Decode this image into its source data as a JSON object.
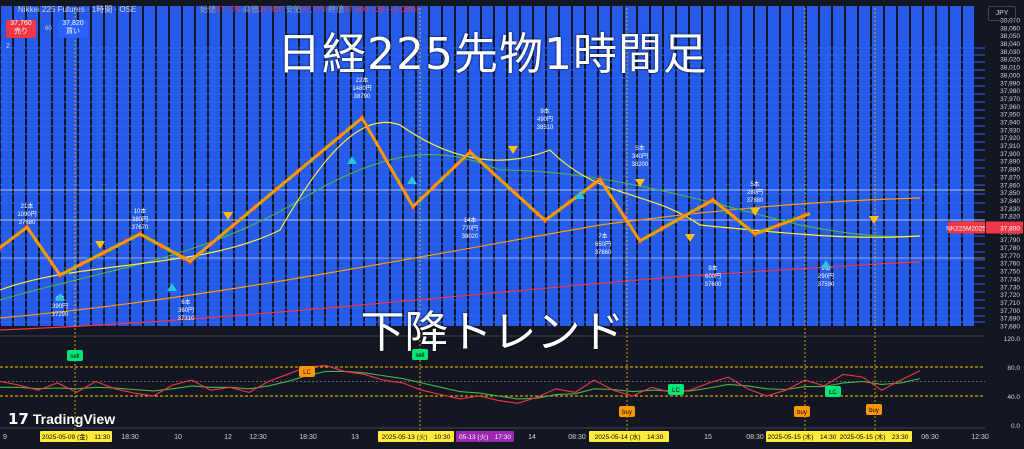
{
  "overlay": {
    "title": "日経225先物1時間足",
    "trend": "下降トレンド"
  },
  "header": {
    "symbol_title": "Nikkei 225 Futures · 1時間 · OSE",
    "ohlc_label_open": "始値",
    "ohlc_open": "37,770",
    "ohlc_label_high": "高値",
    "ohlc_high": "37,800",
    "ohlc_label_low": "安値",
    "ohlc_low": "37,770",
    "ohlc_label_close": "終値",
    "ohlc_close": "37,800 +30 (+0.08%)",
    "sell_price": "37,760",
    "sell_label": "売り",
    "quantity": "60",
    "buy_price": "37,820",
    "buy_label": "買い",
    "indicator_count": "2",
    "currency": "JPY"
  },
  "logo": {
    "text": "TradingView"
  },
  "colors": {
    "background": "#131722",
    "bar_blue": "#2962ff",
    "zigzag": "#ff9800",
    "ma_fast": "#ffeb3b",
    "ma_mid": "#4caf50",
    "ma_slow": "#ff9800",
    "ma_long": "#f23645",
    "rsi_fast": "#f23645",
    "rsi_slow": "#4caf50",
    "sell_badge": "#00e676",
    "buy_badge": "#ff9800",
    "lc_badge_orange": "#ff9800",
    "lc_badge_green": "#00e676",
    "price_tag": "#f23645",
    "date_highlight": "#ffeb3b",
    "date_highlight_purple": "#9c27b0"
  },
  "chart_data": {
    "type": "candlestick",
    "title": "",
    "symbol_tag": "NK225M2025",
    "current_price": "37,800",
    "price_axis": {
      "ylim": [
        37680,
        38070
      ],
      "ticks": [
        "38,070",
        "38,060",
        "38,050",
        "38,040",
        "38,030",
        "38,020",
        "38,010",
        "38,000",
        "37,990",
        "37,980",
        "37,970",
        "37,960",
        "37,950",
        "37,940",
        "37,930",
        "37,920",
        "37,910",
        "37,900",
        "37,890",
        "37,880",
        "37,870",
        "37,860",
        "37,850",
        "37,840",
        "37,830",
        "37,820",
        "37,810",
        "37,800",
        "37,790",
        "37,780",
        "37,770",
        "37,760",
        "37,750",
        "37,740",
        "37,730",
        "37,720",
        "37,710",
        "37,700",
        "37,690",
        "37,680"
      ]
    },
    "time_axis": {
      "labels": [
        "9",
        "18:30",
        "10",
        "12",
        "12:30",
        "18:30",
        "13",
        "08:30",
        "14",
        "15",
        "08:30",
        "06:30",
        "12:30"
      ],
      "highlighted": [
        "2025-05-09 (金)　11:30",
        "2025-05-13 (火)　10:30",
        "05-13 (火)　17:30",
        "2025-05-14 (水)　14:30",
        "2025-05-15 (木)　14:30",
        "2025-05-15 (木)　23:30"
      ]
    },
    "zigzag_labels": [
      {
        "bars": "21本",
        "yen": "1090円",
        "price": "37680"
      },
      {
        "bars": "4本",
        "yen": "390円",
        "price": "37290"
      },
      {
        "bars": "10本",
        "yen": "380円",
        "price": "37670"
      },
      {
        "bars": "6本",
        "yen": "360円",
        "price": "37310"
      },
      {
        "bars": "22本",
        "yen": "1480円",
        "price": "38790"
      },
      {
        "bars": "14本",
        "yen": "770円",
        "price": "38020"
      },
      {
        "bars": "9本",
        "yen": "490円",
        "price": "38510"
      },
      {
        "bars": "7本",
        "yen": "650円",
        "price": "37860"
      },
      {
        "bars": "5本",
        "yen": "340円",
        "price": "38200"
      },
      {
        "bars": "9本",
        "yen": "600円",
        "price": "37600"
      },
      {
        "bars": "5本",
        "yen": "280円",
        "price": "37880"
      },
      {
        "bars": "9本",
        "yen": "290円",
        "price": "37590"
      }
    ],
    "zigzag_pivots": [
      37740,
      37770,
      37700,
      37760,
      37720,
      37930,
      37800,
      37880,
      37780,
      37840,
      37750,
      37810,
      37760,
      37790
    ],
    "rsi": {
      "ylim": [
        0,
        120
      ],
      "ticks": [
        "120.0",
        "80.0",
        "40.0",
        "0.0"
      ],
      "levels": [
        80,
        40
      ],
      "fast": [
        60,
        55,
        48,
        58,
        45,
        60,
        50,
        44,
        40,
        55,
        62,
        48,
        52,
        45,
        60,
        70,
        80,
        82,
        74,
        70,
        62,
        58,
        48,
        42,
        36,
        40,
        34,
        30,
        38,
        50,
        45,
        62,
        48,
        40,
        52,
        45,
        48,
        58,
        66,
        50,
        40,
        48,
        62,
        54,
        70,
        66,
        48,
        62,
        75
      ],
      "slow": [
        52,
        52,
        50,
        51,
        50,
        52,
        51,
        49,
        47,
        50,
        54,
        52,
        52,
        50,
        54,
        60,
        68,
        74,
        74,
        72,
        68,
        64,
        58,
        52,
        46,
        44,
        40,
        36,
        37,
        42,
        43,
        50,
        49,
        46,
        48,
        47,
        47,
        51,
        56,
        54,
        50,
        49,
        53,
        53,
        58,
        60,
        56,
        58,
        64
      ]
    },
    "signals": [
      {
        "label": "sell",
        "kind": "sell"
      },
      {
        "label": "LC",
        "kind": "lc-orange"
      },
      {
        "label": "sell",
        "kind": "sell"
      },
      {
        "label": "buy",
        "kind": "buy"
      },
      {
        "label": "LC",
        "kind": "lc-green"
      },
      {
        "label": "buy",
        "kind": "buy"
      },
      {
        "label": "LC",
        "kind": "lc-green"
      },
      {
        "label": "buy",
        "kind": "buy"
      }
    ]
  }
}
